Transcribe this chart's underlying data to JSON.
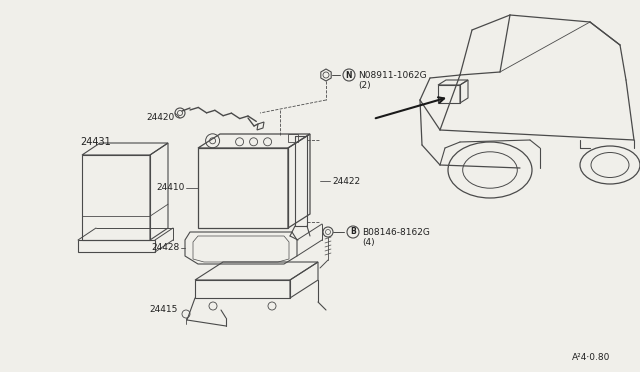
{
  "bg_color": "#f0efea",
  "line_color": "#4a4a4a",
  "text_color": "#222222",
  "font_size": 6.5,
  "page_code": "A²4⋅0.80",
  "parts": {
    "24431": {
      "label": "24431"
    },
    "24420": {
      "label": "24420"
    },
    "24410": {
      "label": "24410"
    },
    "24422": {
      "label": "24422"
    },
    "24428": {
      "label": "24428"
    },
    "24415": {
      "label": "24415"
    },
    "N08911": {
      "label": "N08911-1062G\n(2)"
    },
    "B08146": {
      "label": "B08146-8162G\n(4)"
    }
  }
}
